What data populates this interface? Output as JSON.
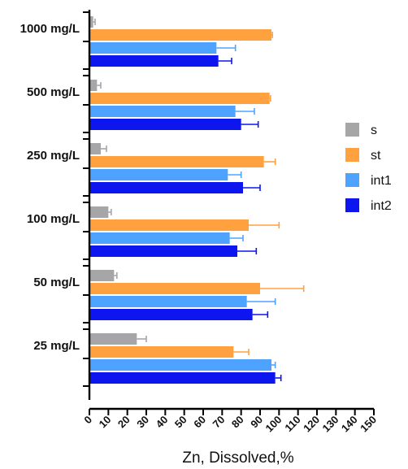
{
  "chart_data": {
    "type": "bar",
    "orientation": "horizontal",
    "categories": [
      "1000 mg/L",
      "500 mg/L",
      "250 mg/L",
      "100 mg/L",
      "50 mg/L",
      "25 mg/L"
    ],
    "series": [
      {
        "name": "s",
        "color": "#a6a6a8",
        "values": [
          2,
          4,
          6,
          10,
          13,
          25
        ],
        "errors": [
          1,
          2,
          3,
          1.5,
          1.5,
          5
        ]
      },
      {
        "name": "st",
        "color": "#ffa13f",
        "values": [
          96,
          95,
          92,
          84,
          90,
          76
        ],
        "errors": [
          0.5,
          0.5,
          6,
          16,
          23,
          8
        ]
      },
      {
        "name": "int1",
        "color": "#4ea3ff",
        "values": [
          67,
          77,
          73,
          74,
          83,
          96
        ],
        "errors": [
          10,
          10,
          7,
          7,
          15,
          2
        ]
      },
      {
        "name": "int2",
        "color": "#0d16ef",
        "values": [
          68,
          80,
          81,
          78,
          86,
          98
        ],
        "errors": [
          7,
          9,
          9,
          10,
          8,
          3
        ]
      }
    ],
    "xlabel": "Zn, Dissolved,%",
    "ylabel": "",
    "xlim": [
      0,
      150
    ],
    "xticks": [
      0,
      10,
      20,
      30,
      40,
      50,
      60,
      70,
      80,
      90,
      100,
      110,
      120,
      130,
      140,
      150
    ],
    "grid": false,
    "legend_position": "right"
  }
}
